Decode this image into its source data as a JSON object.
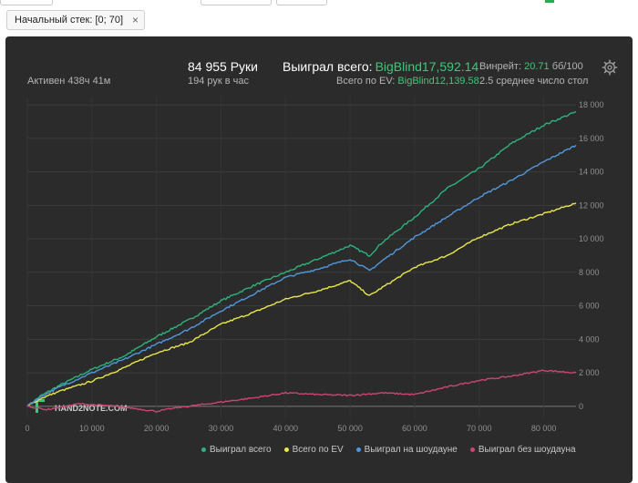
{
  "filter": {
    "label": "Начальный стек: [0; 70]",
    "close_symbol": "×"
  },
  "stats": {
    "active": "Активен 438ч 41м",
    "hands": "84 955 Руки",
    "hands_per_hour": "194 рук в час",
    "won_label": "Выиграл всего:",
    "won_value": "BigBlind17,592.14",
    "ev_label": "Всего по EV:",
    "ev_value": "BigBlind12,139.58",
    "winrate_label": "Винрейт:",
    "winrate_value": "20.71",
    "winrate_unit": "бб/100",
    "avg_players": "2.5 среднее число стол"
  },
  "watermark": "HAND2NOTE.COM",
  "colors": {
    "background": "#2b2b2b",
    "won": "#2db37a",
    "ev": "#e8e84a",
    "showdown": "#4f98dc",
    "no_showdown": "#cc4472"
  },
  "chart_data": {
    "type": "line",
    "xlabel": "",
    "ylabel": "",
    "xlim": [
      0,
      85000
    ],
    "ylim": [
      -500,
      18500
    ],
    "x_ticks": [
      0,
      10000,
      20000,
      30000,
      40000,
      50000,
      60000,
      70000,
      80000
    ],
    "x_tick_labels": [
      "0",
      "10 000",
      "20 000",
      "30 000",
      "40 000",
      "50 000",
      "60 000",
      "70 000",
      "80 000"
    ],
    "y_ticks": [
      0,
      2000,
      4000,
      6000,
      8000,
      10000,
      12000,
      14000,
      16000,
      18000
    ],
    "y_tick_labels": [
      "0",
      "2 000",
      "4 000",
      "6 000",
      "8 000",
      "10 000",
      "12 000",
      "14 000",
      "16 000",
      "18 000"
    ],
    "y_axis_position": "right",
    "grid": true,
    "legend_position": "bottom",
    "series": [
      {
        "name": "Выиграл всего",
        "x": [
          0,
          2000,
          5000,
          10000,
          15000,
          20000,
          25000,
          30000,
          35000,
          40000,
          45000,
          50000,
          53000,
          55000,
          60000,
          65000,
          70000,
          75000,
          80000,
          85000
        ],
        "y": [
          0,
          600,
          1250,
          2200,
          3000,
          4150,
          5150,
          6300,
          7200,
          8000,
          8800,
          9600,
          9000,
          9800,
          11300,
          13000,
          14200,
          15700,
          16800,
          17592
        ]
      },
      {
        "name": "Всего по EV",
        "x": [
          0,
          2000,
          5000,
          10000,
          15000,
          20000,
          25000,
          30000,
          35000,
          40000,
          45000,
          50000,
          53000,
          55000,
          60000,
          65000,
          70000,
          75000,
          80000,
          85000
        ],
        "y": [
          0,
          450,
          900,
          1500,
          2300,
          3200,
          3800,
          4900,
          5600,
          6400,
          6900,
          7500,
          6600,
          7100,
          8300,
          9000,
          10100,
          10900,
          11500,
          12140
        ]
      },
      {
        "name": "Выиграл на шоудауне",
        "x": [
          0,
          2000,
          5000,
          10000,
          15000,
          20000,
          25000,
          30000,
          35000,
          40000,
          45000,
          50000,
          53000,
          55000,
          60000,
          65000,
          70000,
          75000,
          80000,
          85000
        ],
        "y": [
          0,
          550,
          1150,
          2000,
          2800,
          3700,
          4600,
          5700,
          6700,
          7700,
          8200,
          8800,
          8100,
          8700,
          10100,
          11300,
          12500,
          13500,
          14600,
          15600
        ]
      },
      {
        "name": "Выиграл без шоудауна",
        "x": [
          0,
          3000,
          8000,
          12000,
          16000,
          20000,
          23000,
          30000,
          35000,
          40000,
          45000,
          50000,
          55000,
          60000,
          65000,
          70000,
          75000,
          80000,
          85000
        ],
        "y": [
          0,
          -200,
          150,
          50,
          -100,
          -300,
          -100,
          250,
          500,
          800,
          700,
          650,
          800,
          700,
          1150,
          1550,
          1800,
          2150,
          2000
        ]
      }
    ]
  }
}
